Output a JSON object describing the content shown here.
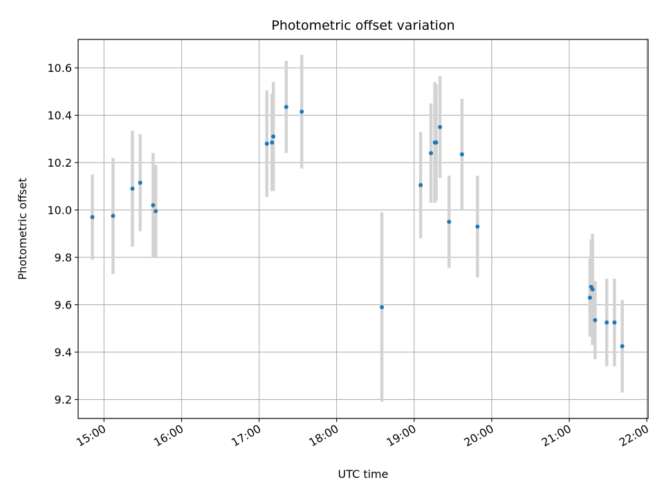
{
  "chart_data": {
    "type": "scatter",
    "title": "Photometric offset variation",
    "xlabel": "UTC time",
    "ylabel": "Photometric offset",
    "x_ticks": [
      "15:00",
      "16:00",
      "17:00",
      "18:00",
      "19:00",
      "20:00",
      "21:00",
      "22:00"
    ],
    "y_ticks": [
      "9.2",
      "9.4",
      "9.6",
      "9.8",
      "10.0",
      "10.2",
      "10.4",
      "10.6"
    ],
    "xlim": [
      "14:40",
      "22:01"
    ],
    "ylim": [
      9.12,
      10.72
    ],
    "grid": true,
    "colors": {
      "point": "#1f77b4",
      "errorbar": "#d3d3d3",
      "grid": "#b0b0b0"
    },
    "series": [
      {
        "points": [
          {
            "x": "14:51",
            "y": 9.97,
            "err": 0.18
          },
          {
            "x": "15:07",
            "y": 9.975,
            "err": 0.245
          },
          {
            "x": "15:22",
            "y": 10.09,
            "err": 0.245
          },
          {
            "x": "15:28",
            "y": 10.115,
            "err": 0.205
          },
          {
            "x": "15:38",
            "y": 10.02,
            "err": 0.22
          },
          {
            "x": "15:40",
            "y": 9.995,
            "err": 0.195
          },
          {
            "x": "17:06",
            "y": 10.28,
            "err": 0.225
          },
          {
            "x": "17:10",
            "y": 10.285,
            "err": 0.205
          },
          {
            "x": "17:11",
            "y": 10.31,
            "err": 0.23
          },
          {
            "x": "17:21",
            "y": 10.435,
            "err": 0.195
          },
          {
            "x": "17:33",
            "y": 10.415,
            "err": 0.24
          },
          {
            "x": "18:35",
            "y": 9.59,
            "err": 0.4
          },
          {
            "x": "19:05",
            "y": 10.105,
            "err": 0.225
          },
          {
            "x": "19:13",
            "y": 10.24,
            "err": 0.21
          },
          {
            "x": "19:16",
            "y": 10.285,
            "err": 0.255
          },
          {
            "x": "19:17",
            "y": 10.285,
            "err": 0.245
          },
          {
            "x": "19:20",
            "y": 10.35,
            "err": 0.215
          },
          {
            "x": "19:27",
            "y": 9.95,
            "err": 0.195
          },
          {
            "x": "19:37",
            "y": 10.235,
            "err": 0.235
          },
          {
            "x": "19:49",
            "y": 9.93,
            "err": 0.215
          },
          {
            "x": "21:16",
            "y": 9.63,
            "err": 0.165
          },
          {
            "x": "21:17",
            "y": 9.675,
            "err": 0.2
          },
          {
            "x": "21:18",
            "y": 9.665,
            "err": 0.235
          },
          {
            "x": "21:20",
            "y": 9.535,
            "err": 0.165
          },
          {
            "x": "21:29",
            "y": 9.525,
            "err": 0.185
          },
          {
            "x": "21:35",
            "y": 9.525,
            "err": 0.185
          },
          {
            "x": "21:41",
            "y": 9.425,
            "err": 0.195
          }
        ]
      }
    ]
  }
}
